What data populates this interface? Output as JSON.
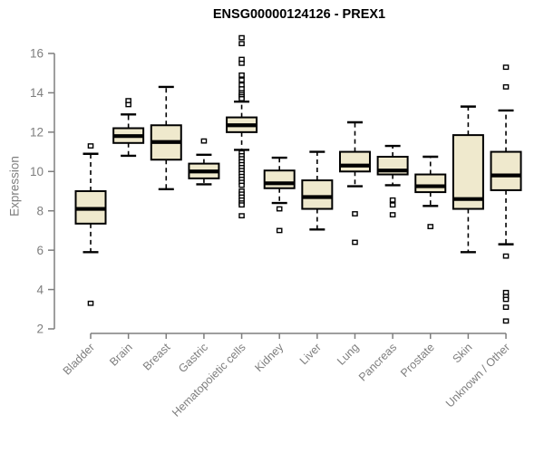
{
  "chart_data": {
    "type": "boxplot",
    "title": "ENSG00000124126 - PREX1",
    "ylabel": "Expression",
    "ylim": [
      2,
      16
    ],
    "yticks": [
      2,
      4,
      6,
      8,
      10,
      12,
      14,
      16
    ],
    "grid": false,
    "categories": [
      "Bladder",
      "Brain",
      "Breast",
      "Gastric",
      "Hematopoietic cells",
      "Kidney",
      "Liver",
      "Lung",
      "Pancreas",
      "Prostate",
      "Skin",
      "Unknown / Other"
    ],
    "series": [
      {
        "name": "Bladder",
        "whisker_low": 5.9,
        "q1": 7.35,
        "median": 8.1,
        "q3": 9.0,
        "whisker_high": 10.9,
        "outliers": [
          11.3,
          3.3
        ]
      },
      {
        "name": "Brain",
        "whisker_low": 10.8,
        "q1": 11.45,
        "median": 11.8,
        "q3": 12.2,
        "whisker_high": 12.9,
        "outliers": [
          13.6,
          13.4
        ]
      },
      {
        "name": "Breast",
        "whisker_low": 9.1,
        "q1": 10.6,
        "median": 11.5,
        "q3": 12.35,
        "whisker_high": 14.3,
        "outliers": []
      },
      {
        "name": "Gastric",
        "whisker_low": 9.35,
        "q1": 9.65,
        "median": 10.0,
        "q3": 10.4,
        "whisker_high": 10.85,
        "outliers": [
          11.55
        ]
      },
      {
        "name": "Hematopoietic cells",
        "whisker_low": 11.1,
        "q1": 12.0,
        "median": 12.35,
        "q3": 12.75,
        "whisker_high": 13.55,
        "outliers": [
          16.8,
          16.5,
          15.7,
          15.5,
          14.9,
          14.65,
          14.4,
          14.2,
          14.0,
          13.9,
          13.8,
          13.7,
          10.95,
          10.8,
          10.65,
          10.5,
          10.35,
          10.2,
          10.05,
          9.9,
          9.75,
          9.6,
          9.45,
          9.3,
          9.0,
          8.85,
          8.7,
          8.55,
          8.4,
          8.3,
          7.75
        ]
      },
      {
        "name": "Kidney",
        "whisker_low": 8.4,
        "q1": 9.15,
        "median": 9.4,
        "q3": 10.05,
        "whisker_high": 10.7,
        "outliers": [
          8.1,
          7.0
        ]
      },
      {
        "name": "Liver",
        "whisker_low": 7.05,
        "q1": 8.1,
        "median": 8.7,
        "q3": 9.55,
        "whisker_high": 11.0,
        "outliers": []
      },
      {
        "name": "Lung",
        "whisker_low": 9.25,
        "q1": 10.0,
        "median": 10.3,
        "q3": 11.0,
        "whisker_high": 12.5,
        "outliers": [
          7.85,
          6.4
        ]
      },
      {
        "name": "Pancreas",
        "whisker_low": 9.3,
        "q1": 9.85,
        "median": 10.05,
        "q3": 10.75,
        "whisker_high": 11.3,
        "outliers": [
          8.55,
          8.3,
          7.8
        ]
      },
      {
        "name": "Prostate",
        "whisker_low": 8.25,
        "q1": 8.95,
        "median": 9.25,
        "q3": 9.85,
        "whisker_high": 10.75,
        "outliers": [
          7.2
        ]
      },
      {
        "name": "Skin",
        "whisker_low": 5.9,
        "q1": 8.1,
        "median": 8.6,
        "q3": 11.85,
        "whisker_high": 13.3,
        "outliers": []
      },
      {
        "name": "Unknown / Other",
        "whisker_low": 6.3,
        "q1": 9.05,
        "median": 9.8,
        "q3": 11.0,
        "whisker_high": 13.1,
        "outliers": [
          15.3,
          14.3,
          5.7,
          3.85,
          3.65,
          3.5,
          3.1,
          2.4
        ]
      }
    ],
    "colors": {
      "box_fill": "#efe9cd",
      "box_border": "#000000",
      "median": "#000000",
      "axis": "#7e7e7e",
      "tick_text": "#7e7e7e",
      "title_text": "#000000"
    }
  }
}
